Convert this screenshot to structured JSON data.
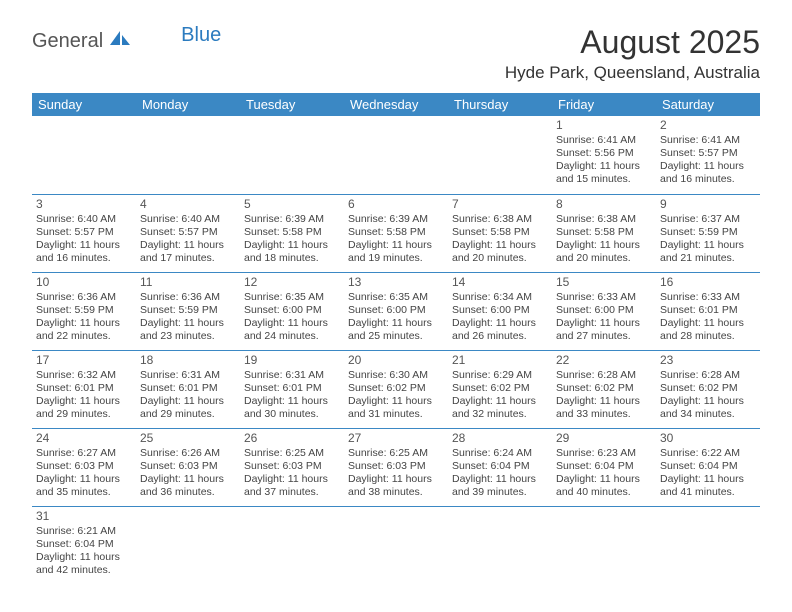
{
  "logo": {
    "general": "General",
    "blue": "Blue"
  },
  "title": "August 2025",
  "location": "Hyde Park, Queensland, Australia",
  "header_bg": "#3b88c4",
  "border_color": "#3b88c4",
  "day_headers": [
    "Sunday",
    "Monday",
    "Tuesday",
    "Wednesday",
    "Thursday",
    "Friday",
    "Saturday"
  ],
  "weeks": [
    [
      null,
      null,
      null,
      null,
      null,
      {
        "n": "1",
        "sr": "Sunrise: 6:41 AM",
        "ss": "Sunset: 5:56 PM",
        "d1": "Daylight: 11 hours",
        "d2": "and 15 minutes."
      },
      {
        "n": "2",
        "sr": "Sunrise: 6:41 AM",
        "ss": "Sunset: 5:57 PM",
        "d1": "Daylight: 11 hours",
        "d2": "and 16 minutes."
      }
    ],
    [
      {
        "n": "3",
        "sr": "Sunrise: 6:40 AM",
        "ss": "Sunset: 5:57 PM",
        "d1": "Daylight: 11 hours",
        "d2": "and 16 minutes."
      },
      {
        "n": "4",
        "sr": "Sunrise: 6:40 AM",
        "ss": "Sunset: 5:57 PM",
        "d1": "Daylight: 11 hours",
        "d2": "and 17 minutes."
      },
      {
        "n": "5",
        "sr": "Sunrise: 6:39 AM",
        "ss": "Sunset: 5:58 PM",
        "d1": "Daylight: 11 hours",
        "d2": "and 18 minutes."
      },
      {
        "n": "6",
        "sr": "Sunrise: 6:39 AM",
        "ss": "Sunset: 5:58 PM",
        "d1": "Daylight: 11 hours",
        "d2": "and 19 minutes."
      },
      {
        "n": "7",
        "sr": "Sunrise: 6:38 AM",
        "ss": "Sunset: 5:58 PM",
        "d1": "Daylight: 11 hours",
        "d2": "and 20 minutes."
      },
      {
        "n": "8",
        "sr": "Sunrise: 6:38 AM",
        "ss": "Sunset: 5:58 PM",
        "d1": "Daylight: 11 hours",
        "d2": "and 20 minutes."
      },
      {
        "n": "9",
        "sr": "Sunrise: 6:37 AM",
        "ss": "Sunset: 5:59 PM",
        "d1": "Daylight: 11 hours",
        "d2": "and 21 minutes."
      }
    ],
    [
      {
        "n": "10",
        "sr": "Sunrise: 6:36 AM",
        "ss": "Sunset: 5:59 PM",
        "d1": "Daylight: 11 hours",
        "d2": "and 22 minutes."
      },
      {
        "n": "11",
        "sr": "Sunrise: 6:36 AM",
        "ss": "Sunset: 5:59 PM",
        "d1": "Daylight: 11 hours",
        "d2": "and 23 minutes."
      },
      {
        "n": "12",
        "sr": "Sunrise: 6:35 AM",
        "ss": "Sunset: 6:00 PM",
        "d1": "Daylight: 11 hours",
        "d2": "and 24 minutes."
      },
      {
        "n": "13",
        "sr": "Sunrise: 6:35 AM",
        "ss": "Sunset: 6:00 PM",
        "d1": "Daylight: 11 hours",
        "d2": "and 25 minutes."
      },
      {
        "n": "14",
        "sr": "Sunrise: 6:34 AM",
        "ss": "Sunset: 6:00 PM",
        "d1": "Daylight: 11 hours",
        "d2": "and 26 minutes."
      },
      {
        "n": "15",
        "sr": "Sunrise: 6:33 AM",
        "ss": "Sunset: 6:00 PM",
        "d1": "Daylight: 11 hours",
        "d2": "and 27 minutes."
      },
      {
        "n": "16",
        "sr": "Sunrise: 6:33 AM",
        "ss": "Sunset: 6:01 PM",
        "d1": "Daylight: 11 hours",
        "d2": "and 28 minutes."
      }
    ],
    [
      {
        "n": "17",
        "sr": "Sunrise: 6:32 AM",
        "ss": "Sunset: 6:01 PM",
        "d1": "Daylight: 11 hours",
        "d2": "and 29 minutes."
      },
      {
        "n": "18",
        "sr": "Sunrise: 6:31 AM",
        "ss": "Sunset: 6:01 PM",
        "d1": "Daylight: 11 hours",
        "d2": "and 29 minutes."
      },
      {
        "n": "19",
        "sr": "Sunrise: 6:31 AM",
        "ss": "Sunset: 6:01 PM",
        "d1": "Daylight: 11 hours",
        "d2": "and 30 minutes."
      },
      {
        "n": "20",
        "sr": "Sunrise: 6:30 AM",
        "ss": "Sunset: 6:02 PM",
        "d1": "Daylight: 11 hours",
        "d2": "and 31 minutes."
      },
      {
        "n": "21",
        "sr": "Sunrise: 6:29 AM",
        "ss": "Sunset: 6:02 PM",
        "d1": "Daylight: 11 hours",
        "d2": "and 32 minutes."
      },
      {
        "n": "22",
        "sr": "Sunrise: 6:28 AM",
        "ss": "Sunset: 6:02 PM",
        "d1": "Daylight: 11 hours",
        "d2": "and 33 minutes."
      },
      {
        "n": "23",
        "sr": "Sunrise: 6:28 AM",
        "ss": "Sunset: 6:02 PM",
        "d1": "Daylight: 11 hours",
        "d2": "and 34 minutes."
      }
    ],
    [
      {
        "n": "24",
        "sr": "Sunrise: 6:27 AM",
        "ss": "Sunset: 6:03 PM",
        "d1": "Daylight: 11 hours",
        "d2": "and 35 minutes."
      },
      {
        "n": "25",
        "sr": "Sunrise: 6:26 AM",
        "ss": "Sunset: 6:03 PM",
        "d1": "Daylight: 11 hours",
        "d2": "and 36 minutes."
      },
      {
        "n": "26",
        "sr": "Sunrise: 6:25 AM",
        "ss": "Sunset: 6:03 PM",
        "d1": "Daylight: 11 hours",
        "d2": "and 37 minutes."
      },
      {
        "n": "27",
        "sr": "Sunrise: 6:25 AM",
        "ss": "Sunset: 6:03 PM",
        "d1": "Daylight: 11 hours",
        "d2": "and 38 minutes."
      },
      {
        "n": "28",
        "sr": "Sunrise: 6:24 AM",
        "ss": "Sunset: 6:04 PM",
        "d1": "Daylight: 11 hours",
        "d2": "and 39 minutes."
      },
      {
        "n": "29",
        "sr": "Sunrise: 6:23 AM",
        "ss": "Sunset: 6:04 PM",
        "d1": "Daylight: 11 hours",
        "d2": "and 40 minutes."
      },
      {
        "n": "30",
        "sr": "Sunrise: 6:22 AM",
        "ss": "Sunset: 6:04 PM",
        "d1": "Daylight: 11 hours",
        "d2": "and 41 minutes."
      }
    ],
    [
      {
        "n": "31",
        "sr": "Sunrise: 6:21 AM",
        "ss": "Sunset: 6:04 PM",
        "d1": "Daylight: 11 hours",
        "d2": "and 42 minutes."
      },
      null,
      null,
      null,
      null,
      null,
      null
    ]
  ]
}
